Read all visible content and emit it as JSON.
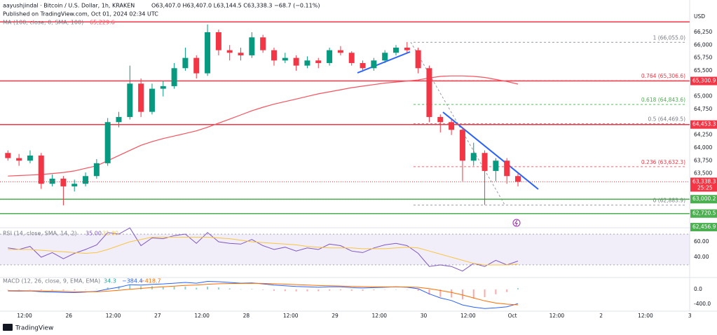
{
  "chart_data": [
    {
      "type": "candlestick",
      "title": "aayushjindal · Bitcoin / U.S. Dollar, 1h, KRAKEN",
      "ohlc": "O63,407.0 H63,407.0 L63,144.5 C63,338.3 −68.7 (−0.11%)",
      "published": "Published on TradingView.com, Oct 01, 2024 02:34 UTC",
      "currency": "USD",
      "brand": "TradingView",
      "categories": [
        "12:00",
        "26",
        "12:00",
        "27",
        "12:00",
        "28",
        "12:00",
        "29",
        "12:00",
        "30",
        "12:00",
        "Oct",
        "12:00",
        "2",
        "12:00",
        "3"
      ],
      "open": [
        63900,
        63800,
        63750,
        63850,
        63300,
        63400,
        63250,
        63300,
        63450,
        63700,
        64500,
        64600,
        65250,
        64700,
        65150,
        65200,
        65550,
        65750,
        65450,
        66250,
        65900,
        65850,
        65800,
        66150,
        65900,
        65700,
        65750,
        65600,
        65700,
        65650,
        65900,
        65850,
        65650,
        65550,
        65700,
        65850,
        65950,
        65900,
        65550,
        64600,
        64500,
        64350,
        63750,
        63900,
        63550,
        63750,
        63450
      ],
      "high": [
        63950,
        63880,
        63950,
        63900,
        63480,
        63450,
        63380,
        63520,
        63780,
        64580,
        64700,
        65600,
        65350,
        65250,
        65300,
        65650,
        65950,
        65800,
        66400,
        66300,
        66000,
        65950,
        66250,
        66200,
        65950,
        65850,
        65800,
        65780,
        65750,
        65950,
        65980,
        65880,
        65700,
        65750,
        65900,
        66000,
        66060,
        65950,
        65600,
        64650,
        64550,
        64400,
        64100,
        63950,
        63800,
        63800,
        63500
      ],
      "low": [
        63750,
        63650,
        63700,
        63200,
        63250,
        62880,
        63150,
        63250,
        63400,
        63650,
        64400,
        64550,
        64600,
        64650,
        65000,
        65150,
        65500,
        65350,
        65400,
        65800,
        65700,
        65700,
        65750,
        65850,
        65600,
        65650,
        65500,
        65550,
        65550,
        65600,
        65800,
        65600,
        65480,
        65500,
        65650,
        65800,
        65850,
        65450,
        64500,
        64300,
        64250,
        63350,
        63650,
        62890,
        63350,
        63300,
        63250
      ],
      "close": [
        63800,
        63750,
        63850,
        63300,
        63400,
        63250,
        63300,
        63450,
        63700,
        64500,
        64600,
        65250,
        64700,
        65150,
        65200,
        65550,
        65750,
        65450,
        66250,
        65900,
        65850,
        65800,
        66150,
        65900,
        65700,
        65750,
        65600,
        65700,
        65650,
        65900,
        65850,
        65650,
        65550,
        65700,
        65850,
        65950,
        65900,
        65550,
        64600,
        64500,
        64350,
        63750,
        63900,
        63550,
        63750,
        63450,
        63338
      ],
      "up_color": "#089981",
      "down_color": "#f23645",
      "ma": {
        "name": "MA (100, close, 0, SMA, 100)",
        "value_label": "65,229.6",
        "color": "#f7525f",
        "values": [
          63450,
          63460,
          63470,
          63480,
          63500,
          63520,
          63550,
          63600,
          63650,
          63750,
          63850,
          63950,
          64050,
          64120,
          64180,
          64230,
          64280,
          64330,
          64400,
          64480,
          64560,
          64640,
          64720,
          64790,
          64850,
          64900,
          64950,
          65000,
          65050,
          65090,
          65130,
          65170,
          65200,
          65230,
          65260,
          65280,
          65300,
          65320,
          65360,
          65390,
          65400,
          65400,
          65390,
          65370,
          65330,
          65290,
          65240
        ]
      },
      "ylim": [
        62444,
        66877
      ],
      "yticks": [
        {
          "value": 66250,
          "label": "66,250"
        },
        {
          "value": 66000,
          "label": "66,000"
        },
        {
          "value": 65750,
          "label": "65,750"
        },
        {
          "value": 65500,
          "label": "65,500"
        },
        {
          "value": 65000,
          "label": "65,000"
        },
        {
          "value": 64750,
          "label": "64,750"
        },
        {
          "value": 64250,
          "label": "64,250"
        },
        {
          "value": 64000,
          "label": "64,000"
        },
        {
          "value": 63750,
          "label": "63,750"
        },
        {
          "value": 63500,
          "label": "63,500"
        }
      ],
      "levels": [
        {
          "value": 66450,
          "color": "#f23645"
        },
        {
          "value": 65300.9,
          "label": "65,300.9",
          "color": "#f23645"
        },
        {
          "value": 64453.3,
          "label": "64,453.3",
          "color": "#f23645"
        },
        {
          "value": 63000.2,
          "label": "63,000.2",
          "color": "#4caf50"
        },
        {
          "value": 62720.5,
          "label": "62,720.5",
          "color": "#4caf50"
        }
      ],
      "extra_label": {
        "value": 62456.9,
        "label": "62,456.9",
        "color": "#4caf50"
      },
      "last_price": {
        "value": 63338.3,
        "label": "63,338.3",
        "color": "#f23645"
      },
      "countdown": "25:25",
      "fib": [
        {
          "value": 66055,
          "label": "1 (66,055.0)",
          "color": "#787b86"
        },
        {
          "value": 65306.6,
          "label": "0.764 (65,306.6)",
          "color": "#f23645"
        },
        {
          "value": 64843.6,
          "label": "0.618 (64,843.6)",
          "color": "#4caf50"
        },
        {
          "value": 64469.5,
          "label": "0.5 (64,469.5)",
          "color": "#787b86"
        },
        {
          "value": 63632.3,
          "label": "0.236 (63,632.3)",
          "color": "#f23645"
        },
        {
          "value": 62883.9,
          "label": "0 (62,883.9)",
          "color": "#787b86"
        }
      ]
    },
    {
      "type": "rsi",
      "name": "RSI (14, close, SMA, 14, 2)",
      "value_labels": [
        "35.00",
        "31.00"
      ],
      "series": [
        {
          "name": "RSI",
          "color": "#7e57c2",
          "values": [
            52,
            50,
            54,
            40,
            46,
            38,
            45,
            50,
            56,
            72,
            70,
            78,
            55,
            65,
            64,
            68,
            70,
            58,
            72,
            60,
            58,
            57,
            63,
            55,
            50,
            53,
            48,
            52,
            50,
            57,
            55,
            48,
            46,
            52,
            56,
            58,
            55,
            45,
            28,
            30,
            28,
            22,
            32,
            28,
            36,
            30,
            35
          ]
        },
        {
          "name": "RSI-based MA",
          "color": "#f7c543",
          "values": [
            50,
            50,
            50,
            49,
            48,
            47,
            46,
            45,
            46,
            50,
            55,
            60,
            63,
            66,
            66,
            66,
            66,
            66,
            66,
            65,
            64,
            62,
            60,
            59,
            58,
            57,
            56,
            54,
            53,
            52,
            52,
            52,
            51,
            51,
            51,
            52,
            53,
            52,
            48,
            44,
            40,
            36,
            32,
            30,
            30,
            30,
            31
          ]
        }
      ],
      "band": [
        30,
        70
      ],
      "ylim": [
        14.5,
        76.4
      ],
      "yticks": [
        {
          "value": 60,
          "label": "60.00"
        },
        {
          "value": 40,
          "label": "40.00"
        }
      ]
    },
    {
      "type": "macd",
      "name": "MACD (12, 26, close, 9, EMA, EMA)",
      "value_labels": [
        "34.3",
        "−384.4",
        "−418.7"
      ],
      "histogram": [
        -10,
        -12,
        -5,
        -20,
        -24,
        -27,
        -25,
        -8,
        10,
        56,
        85,
        124,
        91,
        89,
        79,
        79,
        79,
        47,
        78,
        55,
        28,
        7,
        13,
        -14,
        -35,
        -44,
        -51,
        -49,
        -47,
        -30,
        -24,
        -35,
        -36,
        -21,
        -9,
        1,
        -7,
        -38,
        -142,
        -202,
        -218,
        -270,
        -250,
        -210,
        -130,
        -70,
        34.3
      ],
      "series": [
        {
          "name": "MACD",
          "color": "#2962ff",
          "values": [
            -40,
            -45,
            -40,
            -60,
            -70,
            -80,
            -85,
            -70,
            -50,
            10,
            60,
            130,
            120,
            140,
            150,
            170,
            190,
            170,
            220,
            210,
            190,
            170,
            180,
            150,
            120,
            100,
            80,
            70,
            60,
            70,
            70,
            50,
            40,
            50,
            60,
            70,
            60,
            20,
            -120,
            -230,
            -300,
            -420,
            -480,
            -520,
            -500,
            -470,
            -384.4
          ]
        },
        {
          "name": "Signal",
          "color": "#ff6d00",
          "values": [
            -30,
            -33,
            -35,
            -40,
            -46,
            -53,
            -60,
            -62,
            -60,
            -46,
            -25,
            6,
            29,
            51,
            71,
            91,
            111,
            123,
            142,
            155,
            162,
            163,
            167,
            164,
            155,
            144,
            131,
            119,
            107,
            100,
            94,
            85,
            76,
            71,
            69,
            69,
            67,
            58,
            22,
            -28,
            -82,
            -150,
            -230,
            -310,
            -370,
            -400,
            -418.7
          ]
        }
      ],
      "ylim": [
        -590,
        286
      ],
      "yticks": [
        {
          "value": 0,
          "label": "0.0"
        },
        {
          "value": -400,
          "label": "-400.0"
        }
      ]
    }
  ]
}
